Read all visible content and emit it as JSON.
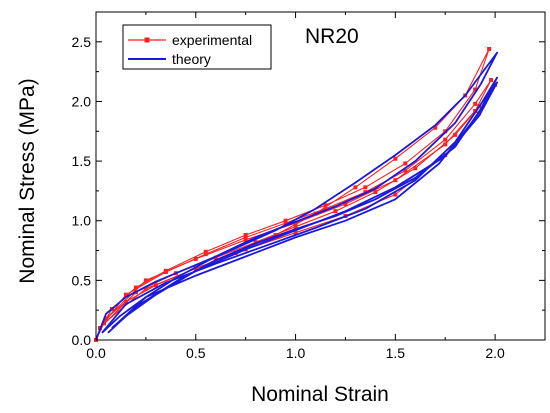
{
  "chart_data": {
    "type": "line",
    "title": "",
    "xlabel": "Nominal Strain",
    "ylabel": "Nominal Stress (MPa)",
    "xlim": [
      0,
      2.25
    ],
    "ylim": [
      0,
      2.75
    ],
    "xticks": [
      "0.0",
      "0.5",
      "1.0",
      "1.5",
      "2.0"
    ],
    "yticks": [
      "0.0",
      "0.5",
      "1.0",
      "1.5",
      "2.0",
      "2.5"
    ],
    "annotation": "NR20",
    "legend_position": "top-left",
    "grid": false,
    "series": [
      {
        "name": "experimental",
        "color": "#ff2020",
        "marker": "square",
        "cycles": [
          [
            [
              0,
              0
            ],
            [
              0.05,
              0.18
            ],
            [
              0.15,
              0.32
            ],
            [
              0.3,
              0.46
            ],
            [
              0.5,
              0.6
            ],
            [
              0.7,
              0.73
            ],
            [
              0.9,
              0.88
            ],
            [
              1.1,
              1.06
            ],
            [
              1.3,
              1.28
            ],
            [
              1.5,
              1.52
            ],
            [
              1.7,
              1.78
            ],
            [
              1.85,
              2.05
            ],
            [
              1.97,
              2.44
            ],
            [
              1.9,
              2.1
            ],
            [
              1.75,
              1.75
            ],
            [
              1.55,
              1.48
            ],
            [
              1.35,
              1.28
            ],
            [
              1.15,
              1.13
            ],
            [
              0.95,
              1.0
            ],
            [
              0.75,
              0.88
            ],
            [
              0.55,
              0.74
            ],
            [
              0.35,
              0.58
            ],
            [
              0.2,
              0.44
            ],
            [
              0.08,
              0.26
            ],
            [
              0.02,
              0.1
            ]
          ],
          [
            [
              0.02,
              0.1
            ],
            [
              0.2,
              0.4
            ],
            [
              0.4,
              0.56
            ],
            [
              0.6,
              0.69
            ],
            [
              0.8,
              0.82
            ],
            [
              1.0,
              0.95
            ],
            [
              1.2,
              1.08
            ],
            [
              1.4,
              1.24
            ],
            [
              1.6,
              1.44
            ],
            [
              1.8,
              1.72
            ],
            [
              1.9,
              1.92
            ],
            [
              1.98,
              2.18
            ],
            [
              1.9,
              1.98
            ],
            [
              1.75,
              1.68
            ],
            [
              1.55,
              1.42
            ],
            [
              1.35,
              1.24
            ],
            [
              1.15,
              1.1
            ],
            [
              0.95,
              0.98
            ],
            [
              0.75,
              0.86
            ],
            [
              0.55,
              0.72
            ],
            [
              0.35,
              0.57
            ],
            [
              0.15,
              0.38
            ],
            [
              0.04,
              0.14
            ]
          ],
          [
            [
              0.04,
              0.14
            ],
            [
              0.25,
              0.43
            ],
            [
              0.5,
              0.6
            ],
            [
              0.75,
              0.76
            ],
            [
              1.0,
              0.9
            ],
            [
              1.25,
              1.04
            ],
            [
              1.5,
              1.22
            ],
            [
              1.75,
              1.55
            ],
            [
              1.92,
              1.9
            ],
            [
              2.0,
              2.14
            ],
            [
              1.92,
              1.96
            ],
            [
              1.75,
              1.64
            ],
            [
              1.5,
              1.34
            ],
            [
              1.25,
              1.14
            ],
            [
              1.0,
              0.98
            ],
            [
              0.75,
              0.84
            ],
            [
              0.5,
              0.68
            ],
            [
              0.25,
              0.5
            ],
            [
              0.05,
              0.18
            ]
          ]
        ]
      },
      {
        "name": "theory",
        "color": "#1a1adc",
        "marker": "none",
        "cycles": [
          [
            [
              0,
              0
            ],
            [
              0.05,
              0.22
            ],
            [
              0.15,
              0.36
            ],
            [
              0.3,
              0.49
            ],
            [
              0.5,
              0.63
            ],
            [
              0.7,
              0.77
            ],
            [
              0.9,
              0.92
            ],
            [
              1.1,
              1.1
            ],
            [
              1.3,
              1.32
            ],
            [
              1.5,
              1.55
            ],
            [
              1.7,
              1.8
            ],
            [
              1.85,
              2.05
            ],
            [
              2.01,
              2.41
            ],
            [
              1.93,
              2.15
            ],
            [
              1.8,
              1.82
            ],
            [
              1.6,
              1.5
            ],
            [
              1.4,
              1.27
            ],
            [
              1.2,
              1.12
            ],
            [
              1.0,
              0.99
            ],
            [
              0.8,
              0.86
            ],
            [
              0.6,
              0.7
            ],
            [
              0.4,
              0.52
            ],
            [
              0.25,
              0.36
            ],
            [
              0.12,
              0.2
            ],
            [
              0.03,
              0.06
            ]
          ],
          [
            [
              0.03,
              0.06
            ],
            [
              0.15,
              0.3
            ],
            [
              0.35,
              0.48
            ],
            [
              0.6,
              0.64
            ],
            [
              0.85,
              0.79
            ],
            [
              1.1,
              0.94
            ],
            [
              1.35,
              1.1
            ],
            [
              1.6,
              1.34
            ],
            [
              1.8,
              1.66
            ],
            [
              1.93,
              1.98
            ],
            [
              2.01,
              2.2
            ],
            [
              1.93,
              1.94
            ],
            [
              1.8,
              1.62
            ],
            [
              1.6,
              1.36
            ],
            [
              1.4,
              1.18
            ],
            [
              1.2,
              1.04
            ],
            [
              1.0,
              0.93
            ],
            [
              0.8,
              0.81
            ],
            [
              0.6,
              0.67
            ],
            [
              0.4,
              0.49
            ],
            [
              0.22,
              0.3
            ],
            [
              0.08,
              0.1
            ]
          ],
          [
            [
              0.08,
              0.1
            ],
            [
              0.25,
              0.36
            ],
            [
              0.5,
              0.54
            ],
            [
              0.75,
              0.7
            ],
            [
              1.0,
              0.86
            ],
            [
              1.25,
              1.0
            ],
            [
              1.5,
              1.18
            ],
            [
              1.72,
              1.48
            ],
            [
              1.9,
              1.86
            ],
            [
              2.01,
              2.16
            ],
            [
              1.92,
              1.88
            ],
            [
              1.75,
              1.54
            ],
            [
              1.5,
              1.28
            ],
            [
              1.25,
              1.08
            ],
            [
              1.0,
              0.92
            ],
            [
              0.75,
              0.76
            ],
            [
              0.5,
              0.58
            ],
            [
              0.3,
              0.38
            ],
            [
              0.15,
              0.2
            ],
            [
              0.06,
              0.06
            ]
          ]
        ]
      }
    ]
  }
}
